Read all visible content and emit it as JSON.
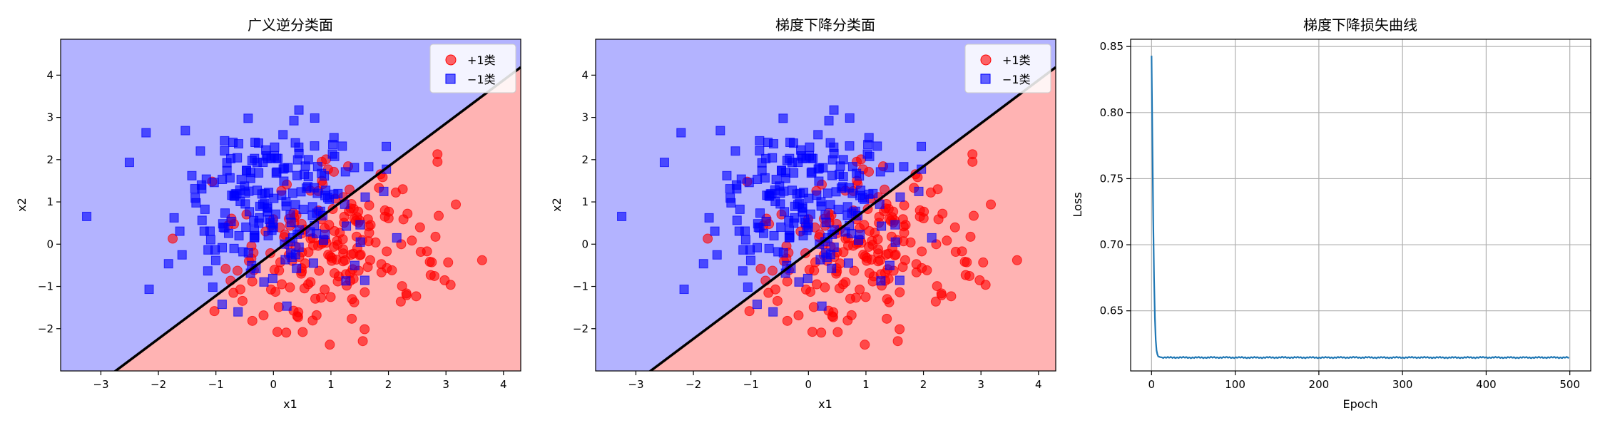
{
  "chart_data": [
    {
      "type": "scatter",
      "title": "广义逆分类面",
      "xlabel": "x1",
      "ylabel": "x2",
      "xlim": [
        -3.7,
        4.3
      ],
      "ylim": [
        -3.0,
        4.85
      ],
      "xticks": [
        -3,
        -2,
        -1,
        0,
        1,
        2,
        3,
        4
      ],
      "yticks": [
        -2,
        -1,
        0,
        1,
        2,
        3,
        4
      ],
      "regions": {
        "positive_color": "#ffb3b3",
        "negative_color": "#b3b3ff"
      },
      "boundary": {
        "slope": 1.02,
        "intercept": -0.2,
        "color": "#000000"
      },
      "legend": {
        "position": "top-right"
      },
      "series": [
        {
          "name": "+1类",
          "marker": "circle",
          "color": "#ff0000"
        },
        {
          "name": "−1类",
          "marker": "square",
          "color": "#0000ff"
        }
      ]
    },
    {
      "type": "scatter",
      "title": "梯度下降分类面",
      "xlabel": "x1",
      "ylabel": "x2",
      "xlim": [
        -3.7,
        4.3
      ],
      "ylim": [
        -3.0,
        4.85
      ],
      "xticks": [
        -3,
        -2,
        -1,
        0,
        1,
        2,
        3,
        4
      ],
      "yticks": [
        -2,
        -1,
        0,
        1,
        2,
        3,
        4
      ],
      "regions": {
        "positive_color": "#ffb3b3",
        "negative_color": "#b3b3ff"
      },
      "boundary": {
        "slope": 1.02,
        "intercept": -0.2,
        "color": "#000000"
      },
      "legend": {
        "position": "top-right"
      },
      "series": [
        {
          "name": "+1类",
          "marker": "circle",
          "color": "#ff0000"
        },
        {
          "name": "−1类",
          "marker": "square",
          "color": "#0000ff"
        }
      ]
    },
    {
      "type": "line",
      "title": "梯度下降损失曲线",
      "xlabel": "Epoch",
      "ylabel": "Loss",
      "xlim": [
        -25,
        525
      ],
      "ylim": [
        0.6045,
        0.8555
      ],
      "xticks": [
        0,
        100,
        200,
        300,
        400,
        500
      ],
      "yticks": [
        0.65,
        0.7,
        0.75,
        0.8,
        0.85
      ],
      "grid": true,
      "color": "#1f77b4",
      "x": [
        0,
        1,
        2,
        3,
        4,
        5,
        6,
        7,
        8,
        10,
        12,
        15,
        20,
        30,
        50,
        80,
        120,
        160,
        200,
        240,
        280,
        320,
        360,
        400,
        440,
        480,
        499
      ],
      "y": [
        0.843,
        0.78,
        0.72,
        0.675,
        0.645,
        0.628,
        0.62,
        0.617,
        0.6155,
        0.615,
        0.6148,
        0.6147,
        0.6146,
        0.6147,
        0.6146,
        0.6147,
        0.6146,
        0.6147,
        0.6146,
        0.6147,
        0.6146,
        0.6147,
        0.6146,
        0.6147,
        0.6146,
        0.6147,
        0.6146
      ]
    }
  ]
}
